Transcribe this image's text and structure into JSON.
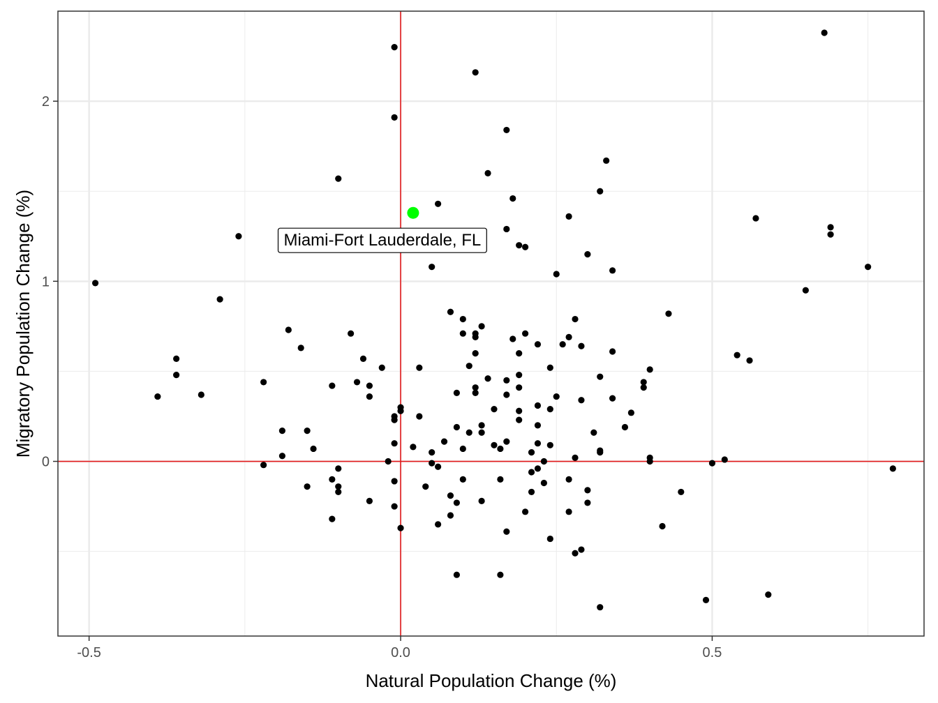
{
  "chart_data": {
    "type": "scatter",
    "xlabel": "Natural Population Change (%)",
    "ylabel": "Migratory Population Change (%)",
    "xlim": [
      -0.55,
      0.84
    ],
    "ylim": [
      -0.97,
      2.5
    ],
    "x_ticks": [
      -0.5,
      0.0,
      0.5
    ],
    "x_tick_labels": [
      "-0.5",
      "0.0",
      "0.5"
    ],
    "y_ticks": [
      0,
      1,
      2
    ],
    "y_tick_labels": [
      "0",
      "1",
      "2"
    ],
    "grid": true,
    "reference_lines": {
      "x": 0,
      "y": 0,
      "color": "#e31a1c"
    },
    "point_color": "#000000",
    "highlight": {
      "label": "Miami-Fort Lauderdale, FL",
      "x": 0.02,
      "y": 1.38,
      "color": "#00ff00"
    },
    "points": [
      [
        -0.49,
        0.99
      ],
      [
        -0.39,
        0.36
      ],
      [
        -0.36,
        0.48
      ],
      [
        -0.36,
        0.57
      ],
      [
        -0.32,
        0.37
      ],
      [
        -0.29,
        0.9
      ],
      [
        -0.26,
        1.25
      ],
      [
        -0.22,
        0.44
      ],
      [
        -0.22,
        -0.02
      ],
      [
        -0.19,
        0.17
      ],
      [
        -0.19,
        0.03
      ],
      [
        -0.18,
        0.73
      ],
      [
        -0.16,
        0.63
      ],
      [
        -0.15,
        0.17
      ],
      [
        -0.15,
        -0.14
      ],
      [
        -0.14,
        0.07
      ],
      [
        -0.11,
        0.42
      ],
      [
        -0.11,
        -0.1
      ],
      [
        -0.11,
        -0.32
      ],
      [
        -0.1,
        1.57
      ],
      [
        -0.1,
        -0.04
      ],
      [
        -0.1,
        -0.14
      ],
      [
        -0.1,
        -0.17
      ],
      [
        -0.08,
        0.71
      ],
      [
        -0.07,
        0.44
      ],
      [
        -0.06,
        0.57
      ],
      [
        -0.05,
        0.42
      ],
      [
        -0.05,
        0.36
      ],
      [
        -0.05,
        -0.22
      ],
      [
        -0.03,
        0.52
      ],
      [
        -0.02,
        0.0
      ],
      [
        -0.01,
        2.3
      ],
      [
        -0.01,
        1.91
      ],
      [
        -0.01,
        0.25
      ],
      [
        -0.01,
        0.23
      ],
      [
        -0.01,
        0.1
      ],
      [
        -0.01,
        -0.11
      ],
      [
        -0.01,
        -0.25
      ],
      [
        0.0,
        0.3
      ],
      [
        0.0,
        0.28
      ],
      [
        0.0,
        -0.37
      ],
      [
        0.02,
        0.08
      ],
      [
        0.03,
        0.52
      ],
      [
        0.03,
        0.25
      ],
      [
        0.04,
        -0.14
      ],
      [
        0.05,
        1.08
      ],
      [
        0.05,
        0.05
      ],
      [
        0.05,
        -0.01
      ],
      [
        0.06,
        1.43
      ],
      [
        0.06,
        -0.03
      ],
      [
        0.06,
        -0.35
      ],
      [
        0.07,
        0.11
      ],
      [
        0.08,
        0.83
      ],
      [
        0.08,
        -0.19
      ],
      [
        0.08,
        -0.3
      ],
      [
        0.09,
        0.38
      ],
      [
        0.09,
        0.19
      ],
      [
        0.09,
        -0.23
      ],
      [
        0.09,
        -0.63
      ],
      [
        0.1,
        0.79
      ],
      [
        0.1,
        0.71
      ],
      [
        0.1,
        0.07
      ],
      [
        0.1,
        -0.1
      ],
      [
        0.11,
        0.53
      ],
      [
        0.11,
        0.16
      ],
      [
        0.12,
        2.16
      ],
      [
        0.12,
        0.71
      ],
      [
        0.12,
        0.69
      ],
      [
        0.12,
        0.6
      ],
      [
        0.12,
        0.41
      ],
      [
        0.12,
        0.38
      ],
      [
        0.13,
        0.75
      ],
      [
        0.13,
        0.2
      ],
      [
        0.13,
        0.16
      ],
      [
        0.13,
        -0.22
      ],
      [
        0.14,
        1.6
      ],
      [
        0.14,
        0.46
      ],
      [
        0.15,
        0.29
      ],
      [
        0.15,
        0.09
      ],
      [
        0.16,
        0.07
      ],
      [
        0.16,
        -0.1
      ],
      [
        0.16,
        -0.63
      ],
      [
        0.17,
        1.84
      ],
      [
        0.17,
        1.29
      ],
      [
        0.17,
        0.45
      ],
      [
        0.17,
        0.37
      ],
      [
        0.17,
        0.11
      ],
      [
        0.17,
        -0.39
      ],
      [
        0.18,
        1.46
      ],
      [
        0.18,
        0.68
      ],
      [
        0.19,
        1.2
      ],
      [
        0.19,
        0.6
      ],
      [
        0.19,
        0.48
      ],
      [
        0.19,
        0.41
      ],
      [
        0.19,
        0.28
      ],
      [
        0.19,
        0.23
      ],
      [
        0.2,
        1.19
      ],
      [
        0.2,
        0.71
      ],
      [
        0.2,
        -0.28
      ],
      [
        0.21,
        0.05
      ],
      [
        0.21,
        -0.06
      ],
      [
        0.21,
        -0.17
      ],
      [
        0.22,
        0.65
      ],
      [
        0.22,
        0.31
      ],
      [
        0.22,
        0.2
      ],
      [
        0.22,
        0.1
      ],
      [
        0.22,
        -0.04
      ],
      [
        0.23,
        0.0
      ],
      [
        0.23,
        -0.12
      ],
      [
        0.24,
        0.52
      ],
      [
        0.24,
        0.29
      ],
      [
        0.24,
        0.09
      ],
      [
        0.24,
        -0.43
      ],
      [
        0.25,
        1.04
      ],
      [
        0.25,
        0.36
      ],
      [
        0.26,
        0.65
      ],
      [
        0.27,
        1.36
      ],
      [
        0.27,
        0.69
      ],
      [
        0.27,
        -0.1
      ],
      [
        0.27,
        -0.28
      ],
      [
        0.28,
        0.79
      ],
      [
        0.28,
        0.02
      ],
      [
        0.28,
        -0.51
      ],
      [
        0.29,
        0.64
      ],
      [
        0.29,
        0.34
      ],
      [
        0.29,
        -0.49
      ],
      [
        0.3,
        1.15
      ],
      [
        0.3,
        -0.16
      ],
      [
        0.3,
        -0.23
      ],
      [
        0.31,
        0.16
      ],
      [
        0.32,
        1.5
      ],
      [
        0.32,
        0.47
      ],
      [
        0.32,
        0.06
      ],
      [
        0.32,
        0.05
      ],
      [
        0.32,
        -0.81
      ],
      [
        0.33,
        1.67
      ],
      [
        0.34,
        1.06
      ],
      [
        0.34,
        0.61
      ],
      [
        0.34,
        0.35
      ],
      [
        0.36,
        0.19
      ],
      [
        0.37,
        0.27
      ],
      [
        0.39,
        0.44
      ],
      [
        0.39,
        0.41
      ],
      [
        0.4,
        0.51
      ],
      [
        0.4,
        0.02
      ],
      [
        0.4,
        0.0
      ],
      [
        0.42,
        -0.36
      ],
      [
        0.43,
        0.82
      ],
      [
        0.45,
        -0.17
      ],
      [
        0.49,
        -0.77
      ],
      [
        0.5,
        -0.01
      ],
      [
        0.52,
        0.01
      ],
      [
        0.54,
        0.59
      ],
      [
        0.56,
        0.56
      ],
      [
        0.57,
        1.35
      ],
      [
        0.59,
        -0.74
      ],
      [
        0.65,
        0.95
      ],
      [
        0.68,
        2.38
      ],
      [
        0.69,
        1.3
      ],
      [
        0.69,
        1.26
      ],
      [
        0.75,
        1.08
      ],
      [
        0.79,
        -0.04
      ]
    ]
  }
}
